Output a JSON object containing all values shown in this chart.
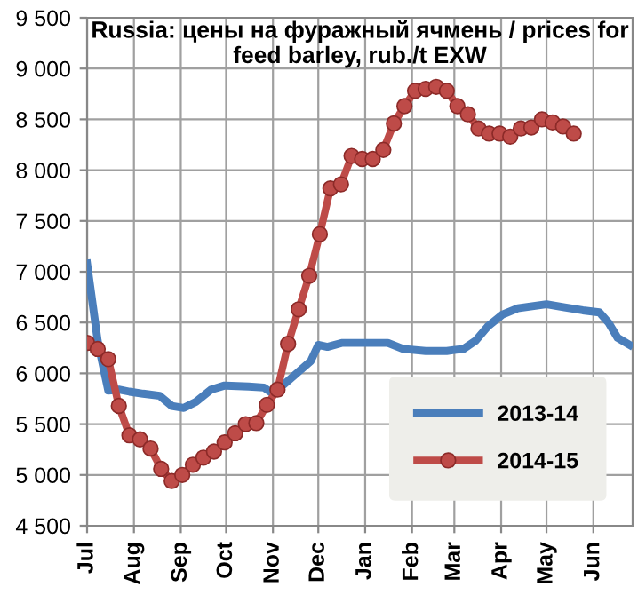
{
  "chart_data": {
    "type": "line",
    "title": "Russia: цены на фуражный ячмень / prices for feed barley, rub./t EXW",
    "xlim": [
      "2013-07-01",
      "2014-06-27"
    ],
    "xticks": [
      {
        "value": "2013-07-01",
        "label": "Jul"
      },
      {
        "value": "2013-08-01",
        "label": "Aug"
      },
      {
        "value": "2013-09-01",
        "label": "Sep"
      },
      {
        "value": "2013-10-01",
        "label": "Oct"
      },
      {
        "value": "2013-11-01",
        "label": "Nov"
      },
      {
        "value": "2013-12-01",
        "label": "Dec"
      },
      {
        "value": "2014-01-01",
        "label": "Jan"
      },
      {
        "value": "2014-02-01",
        "label": "Feb"
      },
      {
        "value": "2014-03-01",
        "label": "Mar"
      },
      {
        "value": "2014-04-01",
        "label": "Apr"
      },
      {
        "value": "2014-05-01",
        "label": "May"
      },
      {
        "value": "2014-06-01",
        "label": "Jun"
      }
    ],
    "ylim": [
      4500,
      9500
    ],
    "yticks": [
      {
        "value": 4500,
        "label": "4 500"
      },
      {
        "value": 5000,
        "label": "5 000"
      },
      {
        "value": 5500,
        "label": "5 500"
      },
      {
        "value": 6000,
        "label": "6 000"
      },
      {
        "value": 6500,
        "label": "6 500"
      },
      {
        "value": 7000,
        "label": "7 000"
      },
      {
        "value": 7500,
        "label": "7 500"
      },
      {
        "value": 8000,
        "label": "8 000"
      },
      {
        "value": 8500,
        "label": "8 500"
      },
      {
        "value": 9000,
        "label": "9 000"
      },
      {
        "value": 9500,
        "label": "9 500"
      }
    ],
    "grid": true,
    "legend": "bottom right",
    "series": [
      {
        "name": "2013-14",
        "color": "#4a7ebb",
        "marker": "none",
        "x": [
          "2013-07-01",
          "2013-07-08",
          "2013-07-15",
          "2013-07-22",
          "2013-07-29",
          "2013-08-07",
          "2013-08-18",
          "2013-08-26",
          "2013-09-03",
          "2013-09-11",
          "2013-09-21",
          "2013-09-30",
          "2013-10-16",
          "2013-10-26",
          "2013-11-01",
          "2013-11-12",
          "2013-11-26",
          "2013-12-01",
          "2013-12-07",
          "2013-12-17",
          "2014-01-02",
          "2014-01-16",
          "2014-01-26",
          "2014-02-10",
          "2014-02-24",
          "2014-03-07",
          "2014-03-15",
          "2014-03-23",
          "2014-04-02",
          "2014-04-12",
          "2014-05-01",
          "2014-05-13",
          "2014-05-25",
          "2014-06-05",
          "2014-06-11",
          "2014-06-17",
          "2014-06-25"
        ],
        "values": [
          7080,
          6320,
          5830,
          5840,
          5820,
          5800,
          5780,
          5680,
          5660,
          5720,
          5840,
          5880,
          5870,
          5860,
          5800,
          5940,
          6120,
          6280,
          6260,
          6300,
          6300,
          6300,
          6240,
          6220,
          6220,
          6240,
          6320,
          6460,
          6580,
          6640,
          6680,
          6650,
          6620,
          6600,
          6500,
          6350,
          6280
        ]
      },
      {
        "name": "2014-15",
        "color": "#be4b48",
        "marker": "circle",
        "x": [
          "2013-07-01",
          "2013-07-08",
          "2013-07-15",
          "2013-07-22",
          "2013-07-29",
          "2013-08-05",
          "2013-08-12",
          "2013-08-19",
          "2013-08-26",
          "2013-09-02",
          "2013-09-09",
          "2013-09-16",
          "2013-09-23",
          "2013-09-30",
          "2013-10-07",
          "2013-10-14",
          "2013-10-21",
          "2013-10-28",
          "2013-11-04",
          "2013-11-11",
          "2013-11-18",
          "2013-11-25",
          "2013-12-02",
          "2013-12-09",
          "2013-12-16",
          "2013-12-23",
          "2013-12-30",
          "2014-01-06",
          "2014-01-13",
          "2014-01-20",
          "2014-01-27",
          "2014-02-03",
          "2014-02-10",
          "2014-02-17",
          "2014-02-24",
          "2014-03-03",
          "2014-03-10",
          "2014-03-17",
          "2014-03-24",
          "2014-03-31",
          "2014-04-07",
          "2014-04-14",
          "2014-04-21",
          "2014-04-28",
          "2014-05-05",
          "2014-05-12",
          "2014-05-19"
        ],
        "values": [
          6300,
          6240,
          6140,
          5680,
          5390,
          5350,
          5260,
          5060,
          4940,
          5000,
          5100,
          5170,
          5230,
          5320,
          5410,
          5500,
          5510,
          5690,
          5840,
          6290,
          6630,
          6960,
          7370,
          7820,
          7860,
          8140,
          8110,
          8110,
          8200,
          8460,
          8630,
          8780,
          8800,
          8820,
          8780,
          8630,
          8550,
          8410,
          8360,
          8360,
          8330,
          8410,
          8420,
          8500,
          8470,
          8430,
          8360
        ]
      }
    ]
  }
}
